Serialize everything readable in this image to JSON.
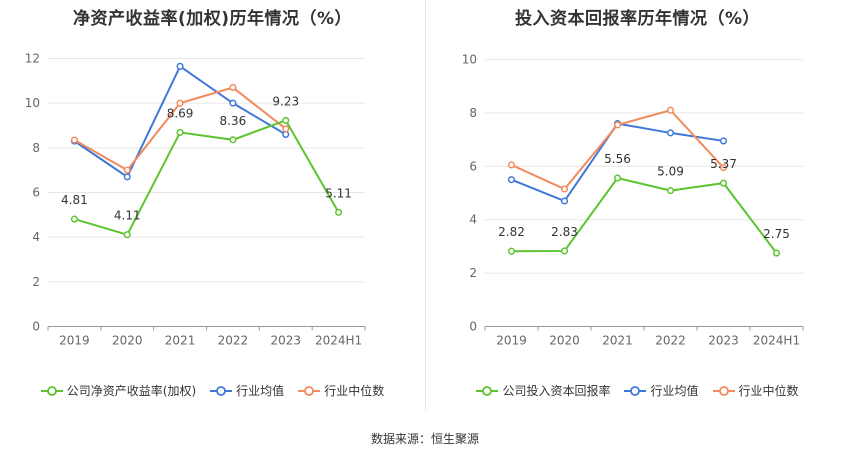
{
  "source_text": "数据来源：恒生聚源",
  "chart_data": [
    {
      "type": "line",
      "title": "净资产收益率(加权)历年情况（%）",
      "categories": [
        "2019",
        "2020",
        "2021",
        "2022",
        "2023",
        "2024H1"
      ],
      "y_ticks": [
        "0",
        "2",
        "4",
        "6",
        "8",
        "10",
        "12"
      ],
      "ylim": [
        0,
        12
      ],
      "grid": true,
      "legend_position": "bottom",
      "series": [
        {
          "name": "公司净资产收益率(加权)",
          "color": "#5cc42e",
          "values": [
            4.81,
            4.11,
            8.69,
            8.36,
            9.23,
            5.11
          ],
          "labels": [
            "4.81",
            "4.11",
            "8.69",
            "8.36",
            "9.23",
            "5.11"
          ]
        },
        {
          "name": "行业均值",
          "color": "#3f78d8",
          "values": [
            8.3,
            6.7,
            11.65,
            10.0,
            8.6,
            null
          ]
        },
        {
          "name": "行业中位数",
          "color": "#f28a5c",
          "values": [
            8.35,
            7.0,
            10.0,
            10.7,
            8.85,
            null
          ]
        }
      ]
    },
    {
      "type": "line",
      "title": "投入资本回报率历年情况（%）",
      "categories": [
        "2019",
        "2020",
        "2021",
        "2022",
        "2023",
        "2024H1"
      ],
      "y_ticks": [
        "0",
        "2",
        "4",
        "6",
        "8",
        "10"
      ],
      "ylim": [
        0,
        10
      ],
      "grid": true,
      "legend_position": "bottom",
      "series": [
        {
          "name": "公司投入资本回报率",
          "color": "#5cc42e",
          "values": [
            2.82,
            2.83,
            5.56,
            5.09,
            5.37,
            2.75
          ],
          "labels": [
            "2.82",
            "2.83",
            "5.56",
            "5.09",
            "5.37",
            "2.75"
          ]
        },
        {
          "name": "行业均值",
          "color": "#3f78d8",
          "values": [
            5.5,
            4.7,
            7.6,
            7.25,
            6.95,
            null
          ]
        },
        {
          "name": "行业中位数",
          "color": "#f28a5c",
          "values": [
            6.05,
            5.15,
            7.55,
            8.1,
            5.95,
            null
          ]
        }
      ]
    }
  ]
}
